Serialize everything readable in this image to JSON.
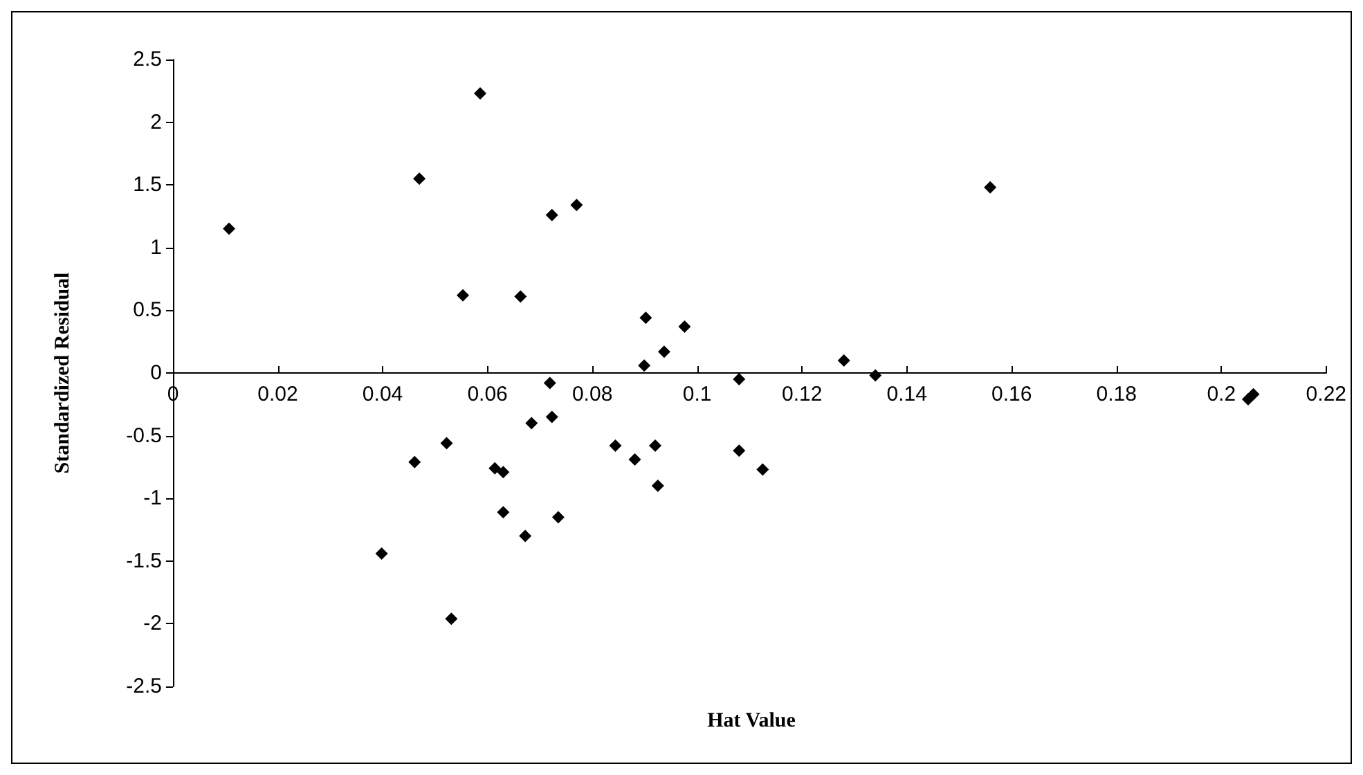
{
  "chart_data": {
    "type": "scatter",
    "xlabel": "Hat Value",
    "ylabel": "Standardized Residual",
    "x": [
      0.0107,
      0.047,
      0.0586,
      0.0553,
      0.0663,
      0.0723,
      0.077,
      0.0902,
      0.0976,
      0.0937,
      0.0899,
      0.0719,
      0.108,
      0.0684,
      0.0723,
      0.0522,
      0.0461,
      0.0614,
      0.063,
      0.063,
      0.0672,
      0.0735,
      0.0398,
      0.0531,
      0.0844,
      0.0881,
      0.092,
      0.0925,
      0.108,
      0.1125,
      0.128,
      0.134,
      0.1559,
      0.2051,
      0.2061
    ],
    "series": [
      {
        "color": "#000000",
        "values": [
          1.15,
          1.55,
          2.23,
          0.62,
          0.61,
          1.26,
          1.34,
          0.44,
          0.37,
          0.17,
          0.06,
          -0.08,
          -0.05,
          -0.4,
          -0.35,
          -0.56,
          -0.71,
          -0.76,
          -0.79,
          -1.11,
          -1.3,
          -1.15,
          -1.44,
          -1.96,
          -0.58,
          -0.69,
          -0.58,
          -0.9,
          -0.62,
          -0.77,
          0.1,
          -0.02,
          1.48,
          -0.21,
          -0.17
        ]
      }
    ],
    "xlim": [
      0,
      0.22
    ],
    "xticks": [
      0,
      0.02,
      0.04,
      0.06,
      0.08,
      0.1,
      0.12,
      0.14,
      0.16,
      0.18,
      0.2,
      0.22
    ],
    "ylim": [
      -2.5,
      2.5
    ],
    "yticks": [
      -2.5,
      -2,
      -1.5,
      -1,
      -0.5,
      0,
      0.5,
      1,
      1.5,
      2,
      2.5
    ],
    "marker": "diamond"
  }
}
